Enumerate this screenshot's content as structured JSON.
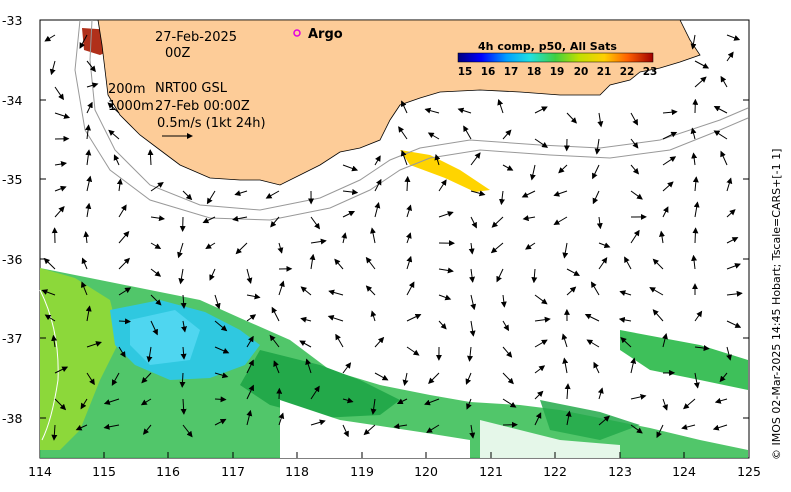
{
  "header": {
    "date": "27-Feb-2025",
    "hour": "00Z",
    "depth_label": "200m",
    "product": "NRT00 GSL",
    "depth_label_2": "1000m",
    "timestamp": "27-Feb 00:00Z",
    "scale_label": "0.5m/s (1kt 24h)"
  },
  "legend": {
    "argo_label": "Argo",
    "colorbar_title": "4h comp, p50, All Sats",
    "colorbar_ticks": [
      "15",
      "16",
      "17",
      "18",
      "19",
      "20",
      "21",
      "22",
      "23"
    ]
  },
  "axes": {
    "y_ticks": [
      "-33",
      "-34",
      "-35",
      "-36",
      "-37",
      "-38"
    ],
    "x_ticks": [
      "114",
      "115",
      "116",
      "117",
      "118",
      "119",
      "120",
      "121",
      "122",
      "123",
      "124",
      "125"
    ]
  },
  "credit": "© IMOS 02-Mar-2025 14:45 Hobart; Tscale=CARS+[-1 1]",
  "colors": {
    "land": "#fdcc98",
    "argo": "#e000e0",
    "contour": "#999999"
  }
}
